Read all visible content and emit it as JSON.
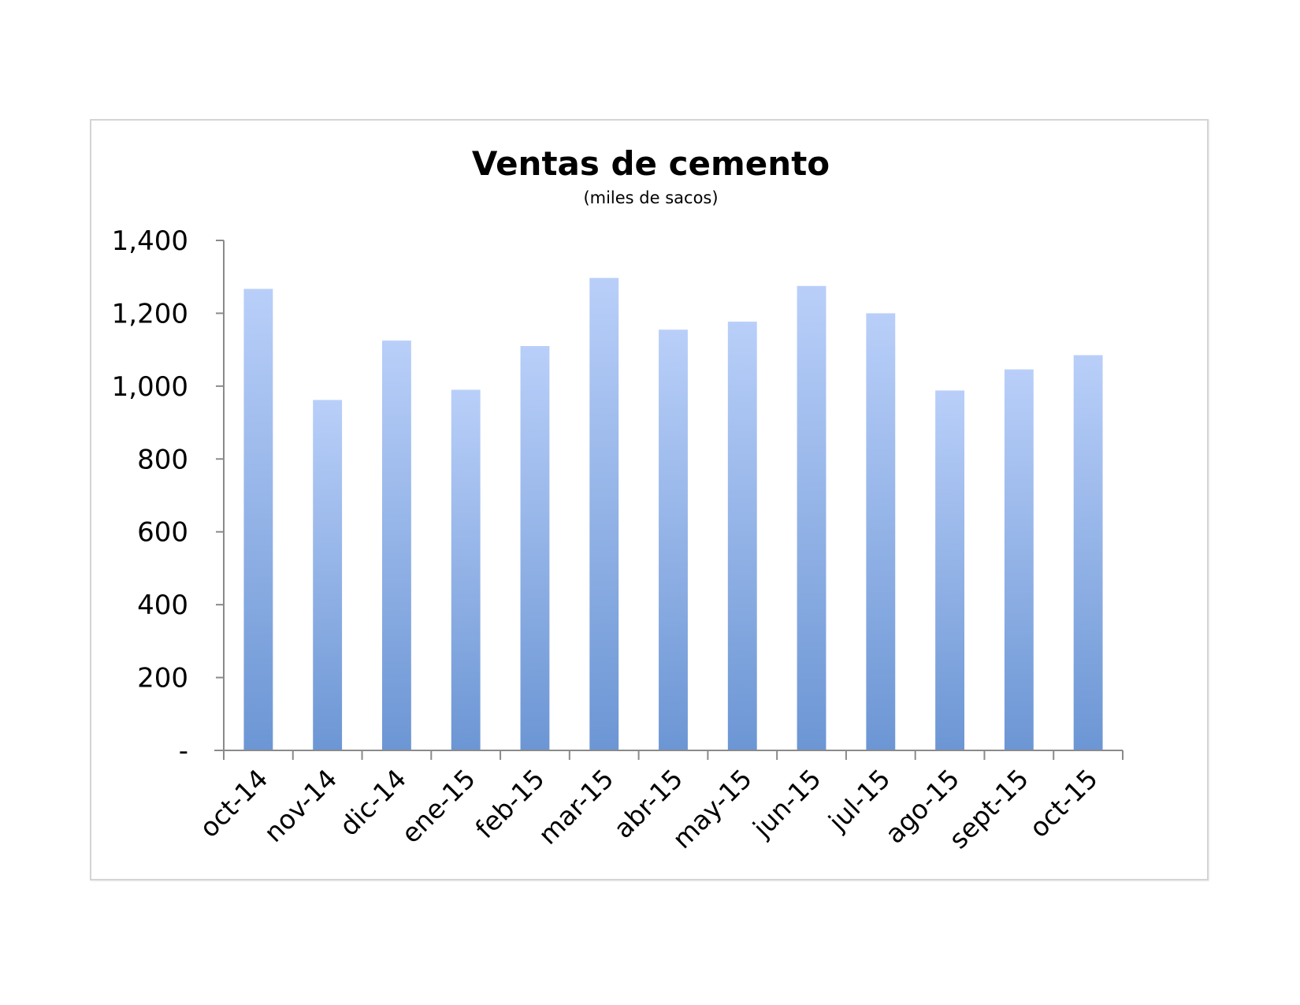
{
  "chart_data": {
    "type": "bar",
    "title": "Ventas de cemento",
    "subtitle": "(miles de sacos)",
    "xlabel": "",
    "ylabel": "",
    "categories": [
      "oct-14",
      "nov-14",
      "dic-14",
      "ene-15",
      "feb-15",
      "mar-15",
      "abr-15",
      "may-15",
      "jun-15",
      "jul-15",
      "ago-15",
      "sept-15",
      "oct-15"
    ],
    "values": [
      1267,
      962,
      1125,
      990,
      1110,
      1297,
      1155,
      1177,
      1275,
      1200,
      988,
      1046,
      1085
    ],
    "ylim": [
      0,
      1400
    ],
    "y_ticks": [
      {
        "value": 0,
        "label": "-"
      },
      {
        "value": 200,
        "label": "200"
      },
      {
        "value": 400,
        "label": "400"
      },
      {
        "value": 600,
        "label": "600"
      },
      {
        "value": 800,
        "label": "800"
      },
      {
        "value": 1000,
        "label": "1,000"
      },
      {
        "value": 1200,
        "label": "1,200"
      },
      {
        "value": 1400,
        "label": "1,400"
      }
    ],
    "grid": false,
    "legend": "none",
    "colors": {
      "bar_top": "#b9cff9",
      "bar_bottom": "#6c96d4",
      "axis": "#8a8a8a"
    }
  }
}
